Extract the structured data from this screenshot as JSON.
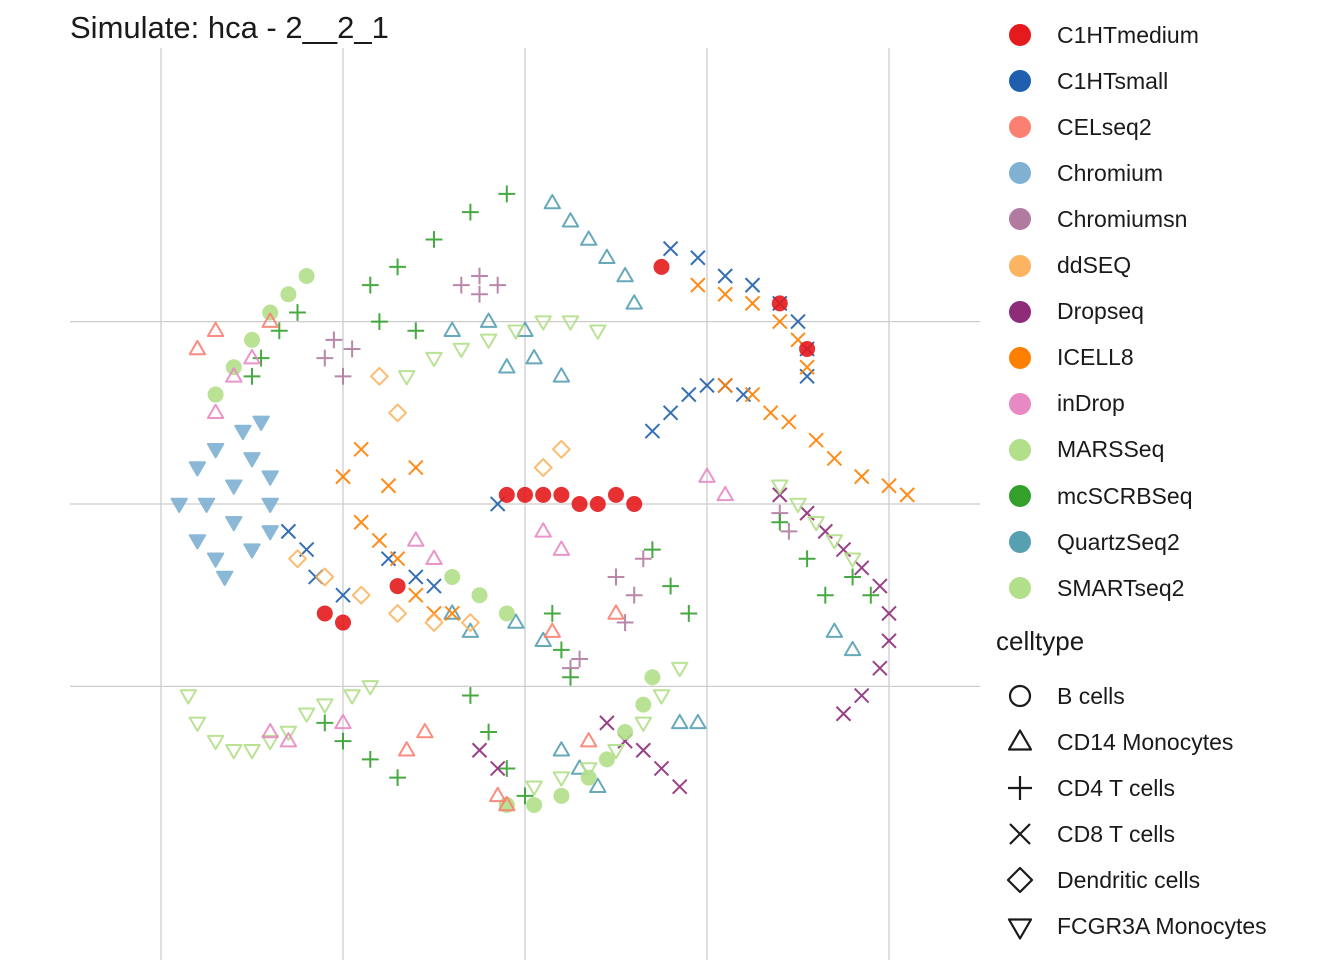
{
  "chart_data": {
    "type": "scatter",
    "title": "Simulate: hca - 2__2_1",
    "xlabel": "",
    "ylabel": "",
    "grid": true,
    "axis_ticks_visible": false,
    "xlim": [
      -50,
      50
    ],
    "ylim": [
      -50,
      50
    ],
    "x_gridlines": [
      -40,
      -20,
      0,
      20,
      40
    ],
    "y_gridlines": [
      -20,
      0,
      20
    ],
    "legend_position": "right",
    "color_legend": {
      "title": "",
      "entries": [
        {
          "label": "C1HTmedium",
          "color": "#E41A1C"
        },
        {
          "label": "C1HTsmall",
          "color": "#1F5FAD"
        },
        {
          "label": "CELseq2",
          "color": "#FB8072"
        },
        {
          "label": "Chromium",
          "color": "#80B1D3"
        },
        {
          "label": "Chromiumsn",
          "color": "#B07AA1"
        },
        {
          "label": "ddSEQ",
          "color": "#FDB462"
        },
        {
          "label": "Dropseq",
          "color": "#8E2C7A"
        },
        {
          "label": "ICELL8",
          "color": "#FF7F00"
        },
        {
          "label": "inDrop",
          "color": "#E78AC3"
        },
        {
          "label": "MARSSeq",
          "color": "#B2DF8A"
        },
        {
          "label": "mcSCRBSeq",
          "color": "#33A02C"
        },
        {
          "label": "QuartzSeq2",
          "color": "#56A0B2"
        },
        {
          "label": "SMARTseq2",
          "color": "#B2DF8A"
        }
      ]
    },
    "shape_legend": {
      "title": "celltype",
      "entries": [
        {
          "label": "B cells",
          "shape": "circle"
        },
        {
          "label": "CD14 Monocytes",
          "shape": "triangle"
        },
        {
          "label": "CD4 T cells",
          "shape": "plus"
        },
        {
          "label": "CD8 T cells",
          "shape": "cross"
        },
        {
          "label": "Dendritic cells",
          "shape": "diamond"
        },
        {
          "label": "FCGR3A Monocytes",
          "shape": "triangle-down"
        }
      ]
    },
    "series": [
      {
        "name": "Chromium",
        "color": "#80B1D3",
        "shape": "triangle-down",
        "region": "blob",
        "points": [
          [
            -38,
            0
          ],
          [
            -36,
            4
          ],
          [
            -36,
            -4
          ],
          [
            -34,
            6
          ],
          [
            -34,
            -6
          ],
          [
            -32,
            2
          ],
          [
            -32,
            -2
          ],
          [
            -30,
            5
          ],
          [
            -30,
            -5
          ],
          [
            -28,
            0
          ],
          [
            -28,
            3
          ],
          [
            -28,
            -3
          ],
          [
            -35,
            0
          ],
          [
            -33,
            -8
          ],
          [
            -31,
            8
          ],
          [
            -29,
            9
          ]
        ]
      },
      {
        "name": "Chromiumsn",
        "color": "#B07AA1",
        "shape": "plus",
        "region": "blob",
        "points": [
          [
            -22,
            16
          ],
          [
            -21,
            18
          ],
          [
            -20,
            14
          ],
          [
            -19,
            17
          ],
          [
            -7,
            24
          ],
          [
            -5,
            25
          ],
          [
            -3,
            24
          ],
          [
            -5,
            23
          ],
          [
            10,
            -8
          ],
          [
            12,
            -10
          ],
          [
            13,
            -6
          ],
          [
            11,
            -13
          ],
          [
            6,
            -17
          ],
          [
            5,
            -18
          ],
          [
            28,
            -1
          ],
          [
            29,
            -3
          ]
        ]
      },
      {
        "name": "QuartzSeq2",
        "color": "#56A0B2",
        "shape": "triangle",
        "region": "arc",
        "points": [
          [
            3,
            33
          ],
          [
            5,
            31
          ],
          [
            7,
            29
          ],
          [
            9,
            27
          ],
          [
            11,
            25
          ],
          [
            12,
            22
          ],
          [
            -8,
            19
          ],
          [
            -4,
            20
          ],
          [
            0,
            19
          ],
          [
            -2,
            15
          ],
          [
            1,
            16
          ],
          [
            4,
            14
          ],
          [
            -1,
            -13
          ],
          [
            2,
            -15
          ],
          [
            17,
            -24
          ],
          [
            19,
            -24
          ],
          [
            4,
            -27
          ],
          [
            6,
            -29
          ],
          [
            8,
            -31
          ],
          [
            34,
            -14
          ],
          [
            36,
            -16
          ],
          [
            -8,
            -12
          ],
          [
            -6,
            -14
          ]
        ]
      },
      {
        "name": "C1HTsmall",
        "color": "#1F5FAD",
        "shape": "cross",
        "region": "arc",
        "points": [
          [
            16,
            28
          ],
          [
            19,
            27
          ],
          [
            22,
            25
          ],
          [
            25,
            24
          ],
          [
            28,
            22
          ],
          [
            30,
            20
          ],
          [
            31,
            17
          ],
          [
            31,
            14
          ],
          [
            14,
            8
          ],
          [
            16,
            10
          ],
          [
            18,
            12
          ],
          [
            20,
            13
          ],
          [
            22,
            13
          ],
          [
            24,
            12
          ],
          [
            -26,
            -3
          ],
          [
            -24,
            -5
          ],
          [
            -23,
            -8
          ],
          [
            -20,
            -10
          ],
          [
            -15,
            -6
          ],
          [
            -12,
            -8
          ],
          [
            -10,
            -9
          ],
          [
            -3,
            0
          ]
        ]
      },
      {
        "name": "ICELL8",
        "color": "#FF7F00",
        "shape": "cross",
        "region": "arc",
        "points": [
          [
            19,
            24
          ],
          [
            22,
            23
          ],
          [
            25,
            22
          ],
          [
            28,
            20
          ],
          [
            30,
            18
          ],
          [
            31,
            15
          ],
          [
            22,
            13
          ],
          [
            25,
            12
          ],
          [
            27,
            10
          ],
          [
            29,
            9
          ],
          [
            32,
            7
          ],
          [
            34,
            5
          ],
          [
            37,
            3
          ],
          [
            40,
            2
          ],
          [
            42,
            1
          ],
          [
            -18,
            -2
          ],
          [
            -16,
            -4
          ],
          [
            -14,
            -6
          ],
          [
            -12,
            -10
          ],
          [
            -10,
            -12
          ],
          [
            -8,
            -12
          ],
          [
            -20,
            3
          ],
          [
            -18,
            6
          ],
          [
            -15,
            2
          ],
          [
            -12,
            4
          ]
        ]
      },
      {
        "name": "C1HTmedium",
        "color": "#E41A1C",
        "shape": "circle",
        "region": "arc",
        "points": [
          [
            -2,
            1
          ],
          [
            0,
            1
          ],
          [
            2,
            1
          ],
          [
            4,
            1
          ],
          [
            6,
            0
          ],
          [
            8,
            0
          ],
          [
            10,
            1
          ],
          [
            12,
            0
          ],
          [
            15,
            26
          ],
          [
            28,
            22
          ],
          [
            31,
            17
          ],
          [
            -22,
            -12
          ],
          [
            -20,
            -13
          ],
          [
            -14,
            -9
          ]
        ]
      },
      {
        "name": "mcSCRBSeq",
        "color": "#33A02C",
        "shape": "plus",
        "region": "arc",
        "points": [
          [
            -30,
            14
          ],
          [
            -29,
            16
          ],
          [
            -27,
            19
          ],
          [
            -25,
            21
          ],
          [
            -17,
            24
          ],
          [
            -14,
            26
          ],
          [
            -10,
            29
          ],
          [
            -6,
            32
          ],
          [
            -2,
            34
          ],
          [
            -16,
            20
          ],
          [
            -12,
            19
          ],
          [
            -22,
            -24
          ],
          [
            -20,
            -26
          ],
          [
            -17,
            -28
          ],
          [
            -14,
            -30
          ],
          [
            -6,
            -21
          ],
          [
            -4,
            -25
          ],
          [
            -2,
            -29
          ],
          [
            0,
            -32
          ],
          [
            3,
            -12
          ],
          [
            4,
            -16
          ],
          [
            5,
            -19
          ],
          [
            14,
            -5
          ],
          [
            16,
            -9
          ],
          [
            18,
            -12
          ],
          [
            28,
            -2
          ],
          [
            31,
            -6
          ],
          [
            33,
            -10
          ],
          [
            36,
            -8
          ],
          [
            38,
            -10
          ]
        ]
      },
      {
        "name": "Dropseq",
        "color": "#8E2C7A",
        "shape": "cross",
        "region": "arc",
        "points": [
          [
            28,
            1
          ],
          [
            31,
            -1
          ],
          [
            33,
            -3
          ],
          [
            35,
            -5
          ],
          [
            37,
            -7
          ],
          [
            39,
            -9
          ],
          [
            40,
            -12
          ],
          [
            40,
            -15
          ],
          [
            39,
            -18
          ],
          [
            37,
            -21
          ],
          [
            35,
            -23
          ],
          [
            13,
            -27
          ],
          [
            15,
            -29
          ],
          [
            17,
            -31
          ],
          [
            9,
            -24
          ],
          [
            11,
            -26
          ],
          [
            -5,
            -27
          ],
          [
            -3,
            -29
          ]
        ]
      },
      {
        "name": "MARSSeq",
        "color": "#B2DF8A",
        "shape": "triangle-down",
        "region": "arc",
        "points": [
          [
            -13,
            14
          ],
          [
            -10,
            16
          ],
          [
            -7,
            17
          ],
          [
            -4,
            18
          ],
          [
            -1,
            19
          ],
          [
            2,
            20
          ],
          [
            5,
            20
          ],
          [
            8,
            19
          ],
          [
            -37,
            -21
          ],
          [
            -36,
            -24
          ],
          [
            -34,
            -26
          ],
          [
            -32,
            -27
          ],
          [
            -30,
            -27
          ],
          [
            -28,
            -26
          ],
          [
            -26,
            -25
          ],
          [
            -24,
            -23
          ],
          [
            -22,
            -22
          ],
          [
            -19,
            -21
          ],
          [
            -17,
            -20
          ],
          [
            1,
            -31
          ],
          [
            4,
            -30
          ],
          [
            7,
            -29
          ],
          [
            10,
            -27
          ],
          [
            13,
            -24
          ],
          [
            15,
            -21
          ],
          [
            17,
            -18
          ],
          [
            28,
            2
          ],
          [
            30,
            0
          ],
          [
            32,
            -2
          ],
          [
            34,
            -4
          ],
          [
            36,
            -6
          ]
        ]
      },
      {
        "name": "SMARTseq2",
        "color": "#B2DF8A",
        "shape": "circle",
        "region": "arc",
        "points": [
          [
            -34,
            12
          ],
          [
            -32,
            15
          ],
          [
            -30,
            18
          ],
          [
            -28,
            21
          ],
          [
            -26,
            23
          ],
          [
            -24,
            25
          ],
          [
            -2,
            -33
          ],
          [
            1,
            -33
          ],
          [
            4,
            -32
          ],
          [
            7,
            -30
          ],
          [
            9,
            -28
          ],
          [
            11,
            -25
          ],
          [
            13,
            -22
          ],
          [
            14,
            -19
          ],
          [
            -8,
            -8
          ],
          [
            -5,
            -10
          ],
          [
            -2,
            -12
          ]
        ]
      },
      {
        "name": "CELseq2",
        "color": "#FB8072",
        "shape": "triangle",
        "region": "arc",
        "points": [
          [
            -3,
            -32
          ],
          [
            -2,
            -33
          ],
          [
            -13,
            -27
          ],
          [
            -11,
            -25
          ],
          [
            -36,
            17
          ],
          [
            -34,
            19
          ],
          [
            7,
            -26
          ],
          [
            10,
            -12
          ],
          [
            3,
            -14
          ],
          [
            -28,
            20
          ]
        ]
      },
      {
        "name": "ddSEQ",
        "color": "#FDB462",
        "shape": "diamond",
        "region": "arc",
        "points": [
          [
            -25,
            -6
          ],
          [
            -22,
            -8
          ],
          [
            -18,
            -10
          ],
          [
            -14,
            -12
          ],
          [
            -10,
            -13
          ],
          [
            -6,
            -13
          ],
          [
            2,
            4
          ],
          [
            4,
            6
          ],
          [
            -16,
            14
          ],
          [
            -14,
            10
          ]
        ]
      },
      {
        "name": "inDrop",
        "color": "#E78AC3",
        "shape": "triangle",
        "region": "arc",
        "points": [
          [
            -34,
            10
          ],
          [
            -32,
            14
          ],
          [
            -30,
            16
          ],
          [
            -12,
            -4
          ],
          [
            -10,
            -6
          ],
          [
            2,
            -3
          ],
          [
            4,
            -5
          ],
          [
            20,
            3
          ],
          [
            22,
            1
          ],
          [
            -28,
            -25
          ],
          [
            -26,
            -26
          ],
          [
            -20,
            -24
          ]
        ]
      }
    ]
  }
}
